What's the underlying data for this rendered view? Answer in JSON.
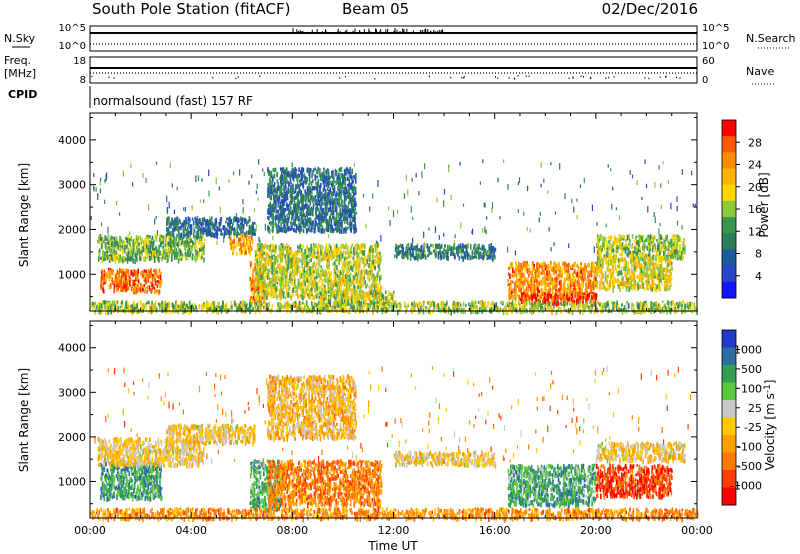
{
  "header": {
    "title": "South Pole Station (fitACF)",
    "beam": "Beam 05",
    "date": "02/Dec/2016"
  },
  "top_panels": {
    "nsky_label": "N.Sky",
    "nsearch_label": "N.Search",
    "nsky_ticks": [
      "10^5",
      "10^0"
    ],
    "nsearch_ticks": [
      "10^5",
      "10^0"
    ],
    "freq_label": "Freq.",
    "freq_unit": "[MHz]",
    "freq_ticks": [
      "18",
      "8"
    ],
    "nave_label": "Nave",
    "nave_ticks": [
      "60",
      "0"
    ],
    "cpid_label": "CPID",
    "cpid_text": "normalsound (fast) 157 RF"
  },
  "chart_data": [
    {
      "type": "heatmap",
      "name": "power",
      "xlabel": "",
      "ylabel": "Slant Range [km]",
      "xlim_hours": [
        0,
        24
      ],
      "ylim": [
        180,
        4600
      ],
      "yticks": [
        1000,
        2000,
        3000,
        4000
      ],
      "colorbar": {
        "label": "Power [dB]",
        "ticks": [
          "28",
          "24",
          "20",
          "16",
          "12",
          "8",
          "4"
        ],
        "colors": [
          "#ff0000",
          "#ff5a00",
          "#ff8c00",
          "#ffb400",
          "#ffd700",
          "#8cc83c",
          "#3c9650",
          "#2d7d5a",
          "#1e5aa0",
          "#2846c8",
          "#1414ff"
        ]
      },
      "regions": [
        {
          "t0": 0.4,
          "t1": 2.8,
          "r0": 650,
          "r1": 1150,
          "level": 0.85
        },
        {
          "t0": 0.3,
          "t1": 4.5,
          "r0": 1350,
          "r1": 1900,
          "level": 0.45
        },
        {
          "t0": 3.0,
          "t1": 6.5,
          "r0": 1900,
          "r1": 2300,
          "level": 0.25
        },
        {
          "t0": 5.5,
          "t1": 6.4,
          "r0": 1500,
          "r1": 1900,
          "level": 0.75
        },
        {
          "t0": 6.3,
          "t1": 6.9,
          "r0": 400,
          "r1": 1300,
          "level": 0.8
        },
        {
          "t0": 6.5,
          "t1": 11.5,
          "r0": 500,
          "r1": 1700,
          "level": 0.55
        },
        {
          "t0": 7.0,
          "t1": 10.5,
          "r0": 2000,
          "r1": 3400,
          "level": 0.25
        },
        {
          "t0": 9.0,
          "t1": 12.0,
          "r0": 350,
          "r1": 650,
          "level": 0.55
        },
        {
          "t0": 12.0,
          "t1": 16.0,
          "r0": 1400,
          "r1": 1700,
          "level": 0.3
        },
        {
          "t0": 16.5,
          "t1": 20.0,
          "r0": 500,
          "r1": 1300,
          "level": 0.8
        },
        {
          "t0": 17.0,
          "t1": 20.0,
          "r0": 380,
          "r1": 600,
          "level": 0.95
        },
        {
          "t0": 20.0,
          "t1": 23.5,
          "r0": 1400,
          "r1": 1900,
          "level": 0.5
        },
        {
          "t0": 20.0,
          "t1": 23.0,
          "r0": 700,
          "r1": 1400,
          "level": 0.6
        },
        {
          "t0": 0.0,
          "t1": 24.0,
          "r0": 200,
          "r1": 420,
          "level": 0.5
        }
      ]
    },
    {
      "type": "heatmap",
      "name": "velocity",
      "xlabel": "Time UT",
      "ylabel": "Slant Range [km]",
      "xlim_hours": [
        0,
        24
      ],
      "ylim": [
        180,
        4600
      ],
      "yticks": [
        1000,
        2000,
        3000,
        4000
      ],
      "xticks": [
        "00:00",
        "04:00",
        "08:00",
        "12:00",
        "16:00",
        "20:00",
        "00:00"
      ],
      "colorbar": {
        "label": "Velocity [m s^-1]",
        "ticks": [
          "1000",
          "500",
          "100",
          "25",
          "-25",
          "-100",
          "-500",
          "-1000"
        ],
        "colors": [
          "#1e3cc8",
          "#2d6ea0",
          "#32a050",
          "#5ac83c",
          "#c8c8c8",
          "#ffc800",
          "#ffa000",
          "#ff7800",
          "#ff3c00",
          "#ff0000"
        ]
      },
      "regions": [
        {
          "t0": 0.4,
          "t1": 2.8,
          "r0": 650,
          "r1": 1450,
          "level": 0.78
        },
        {
          "t0": 0.3,
          "t1": 4.5,
          "r0": 1400,
          "r1": 2000,
          "level": 0.45
        },
        {
          "t0": 3.0,
          "t1": 6.5,
          "r0": 1900,
          "r1": 2300,
          "level": 0.45
        },
        {
          "t0": 6.3,
          "t1": 7.5,
          "r0": 400,
          "r1": 1500,
          "level": 0.72
        },
        {
          "t0": 7.0,
          "t1": 11.5,
          "r0": 500,
          "r1": 1500,
          "level": 0.25
        },
        {
          "t0": 7.0,
          "t1": 10.5,
          "r0": 2000,
          "r1": 3400,
          "level": 0.4
        },
        {
          "t0": 12.0,
          "t1": 16.0,
          "r0": 1400,
          "r1": 1700,
          "level": 0.45
        },
        {
          "t0": 16.5,
          "t1": 20.0,
          "r0": 500,
          "r1": 1400,
          "level": 0.75
        },
        {
          "t0": 20.0,
          "t1": 23.5,
          "r0": 1500,
          "r1": 1900,
          "level": 0.45
        },
        {
          "t0": 20.0,
          "t1": 23.0,
          "r0": 700,
          "r1": 1400,
          "level": 0.1
        },
        {
          "t0": 0.0,
          "t1": 24.0,
          "r0": 200,
          "r1": 420,
          "level": 0.3
        }
      ]
    }
  ]
}
